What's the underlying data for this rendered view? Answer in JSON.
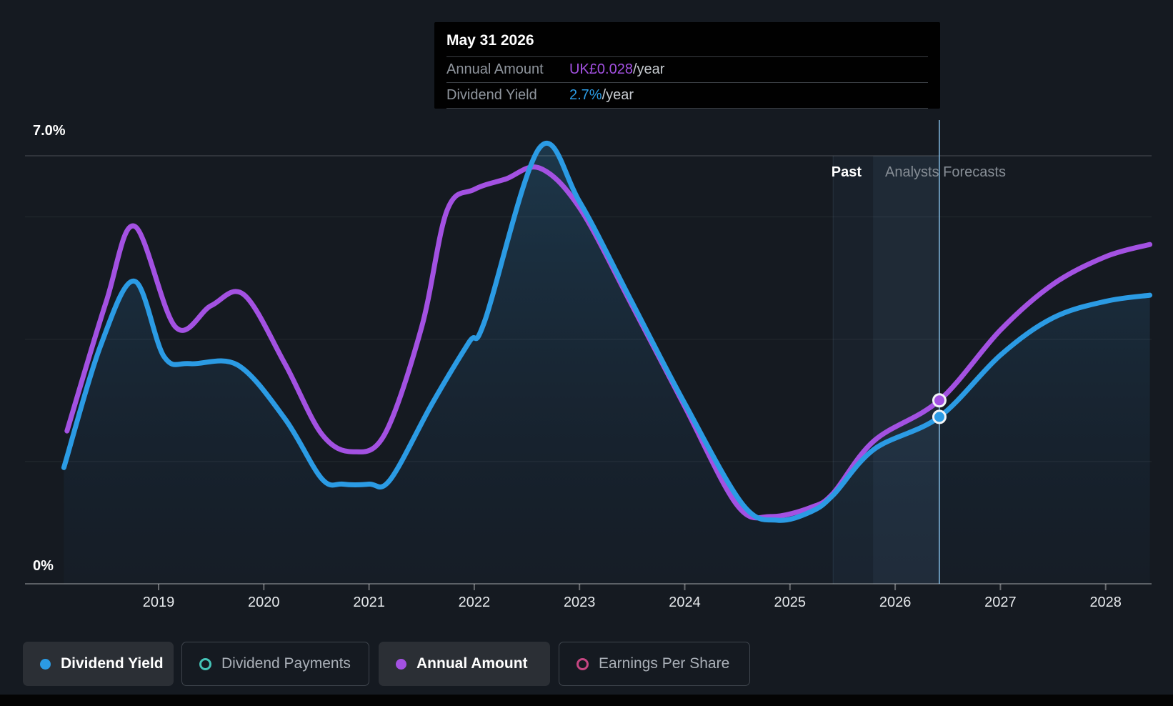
{
  "axis": {
    "y_top_label": "7.0%",
    "y_bottom_label": "0%",
    "x_ticks": [
      "2019",
      "2020",
      "2021",
      "2022",
      "2023",
      "2024",
      "2025",
      "2026",
      "2027",
      "2028"
    ]
  },
  "regions": {
    "past_label": "Past",
    "forecast_label": "Analysts Forecasts"
  },
  "tooltip": {
    "title": "May 31 2026",
    "rows": [
      {
        "label": "Annual Amount",
        "value": "UK£0.028",
        "suffix": "/year",
        "color": "#a351e2"
      },
      {
        "label": "Dividend Yield",
        "value": "2.7%",
        "suffix": "/year",
        "color": "#2b9be4"
      }
    ]
  },
  "legend": {
    "items": [
      {
        "label": "Dividend Yield",
        "state": "active",
        "marker": "filled",
        "color": "#2b9be4"
      },
      {
        "label": "Dividend Payments",
        "state": "inactive",
        "marker": "open",
        "color": "#45c4b8"
      },
      {
        "label": "Annual Amount",
        "state": "active",
        "marker": "filled",
        "color": "#a351e2"
      },
      {
        "label": "Earnings Per Share",
        "state": "inactive",
        "marker": "open",
        "color": "#c64682"
      }
    ]
  },
  "colors": {
    "background": "#151a21",
    "blue": "#2b9be4",
    "purple": "#a351e2",
    "grid_faint": "rgba(255,255,255,0.07)",
    "grid_top": "rgba(255,255,255,0.16)",
    "grid_base": "rgba(255,255,255,0.30)",
    "hover_line": "rgba(130,185,225,0.75)",
    "band_recent": "rgba(120,180,230,0.05)",
    "band_hover": "rgba(115,175,225,0.11)",
    "area_top": "rgba(43,108,150,0.34)",
    "area_bottom": "rgba(27,54,84,0.10)"
  },
  "chart_data": {
    "type": "line",
    "title": "Dividend yield history and forecast",
    "x_range": [
      2018.1,
      2028.45
    ],
    "y_range_percent": [
      0,
      7.0
    ],
    "gridlines_percent": [
      2,
      4,
      6
    ],
    "boundary_lines_percent": [
      0,
      7
    ],
    "x_tick_years": [
      2019,
      2020,
      2021,
      2022,
      2023,
      2024,
      2025,
      2026,
      2027,
      2028
    ],
    "past_until": 2025.41,
    "divider_year": 2025.79,
    "hover": {
      "year": 2026.42,
      "date": "May 31 2026",
      "dividend_yield_pct": 2.73,
      "annual_amount_pct_scale": 3.0,
      "annual_amount": "UK£0.028/year"
    },
    "series": [
      {
        "name": "Dividend Yield",
        "color": "#2b9be4",
        "fill": true,
        "points": [
          [
            2018.1,
            1.9
          ],
          [
            2018.45,
            3.9
          ],
          [
            2018.77,
            4.95
          ],
          [
            2019.05,
            3.72
          ],
          [
            2019.3,
            3.6
          ],
          [
            2019.75,
            3.58
          ],
          [
            2020.2,
            2.7
          ],
          [
            2020.55,
            1.72
          ],
          [
            2020.75,
            1.63
          ],
          [
            2021.0,
            1.63
          ],
          [
            2021.2,
            1.7
          ],
          [
            2021.6,
            2.95
          ],
          [
            2021.95,
            3.95
          ],
          [
            2022.1,
            4.3
          ],
          [
            2022.62,
            7.13
          ],
          [
            2023.0,
            6.25
          ],
          [
            2023.5,
            4.6
          ],
          [
            2024.0,
            2.95
          ],
          [
            2024.55,
            1.3
          ],
          [
            2024.88,
            1.04
          ],
          [
            2025.2,
            1.18
          ],
          [
            2025.41,
            1.45
          ],
          [
            2025.8,
            2.2
          ],
          [
            2026.42,
            2.73
          ],
          [
            2027.0,
            3.74
          ],
          [
            2027.5,
            4.35
          ],
          [
            2028.0,
            4.62
          ],
          [
            2028.42,
            4.72
          ]
        ]
      },
      {
        "name": "Annual Amount",
        "color": "#a351e2",
        "fill": false,
        "points": [
          [
            2018.13,
            2.5
          ],
          [
            2018.5,
            4.6
          ],
          [
            2018.77,
            5.85
          ],
          [
            2019.16,
            4.2
          ],
          [
            2019.5,
            4.55
          ],
          [
            2019.81,
            4.73
          ],
          [
            2020.2,
            3.6
          ],
          [
            2020.55,
            2.45
          ],
          [
            2020.85,
            2.16
          ],
          [
            2021.15,
            2.45
          ],
          [
            2021.5,
            4.2
          ],
          [
            2021.74,
            6.1
          ],
          [
            2022.0,
            6.45
          ],
          [
            2022.3,
            6.62
          ],
          [
            2022.62,
            6.8
          ],
          [
            2023.0,
            6.15
          ],
          [
            2023.5,
            4.55
          ],
          [
            2024.0,
            2.9
          ],
          [
            2024.5,
            1.28
          ],
          [
            2024.82,
            1.1
          ],
          [
            2025.2,
            1.25
          ],
          [
            2025.41,
            1.48
          ],
          [
            2025.8,
            2.34
          ],
          [
            2026.42,
            3.0
          ],
          [
            2027.0,
            4.15
          ],
          [
            2027.5,
            4.9
          ],
          [
            2028.0,
            5.35
          ],
          [
            2028.42,
            5.55
          ]
        ]
      }
    ],
    "markers": [
      {
        "series": "Annual Amount",
        "x": 2026.42,
        "y": 3.0
      },
      {
        "series": "Dividend Yield",
        "x": 2026.42,
        "y": 2.73
      }
    ],
    "legend_position": "bottom",
    "grid": true
  }
}
